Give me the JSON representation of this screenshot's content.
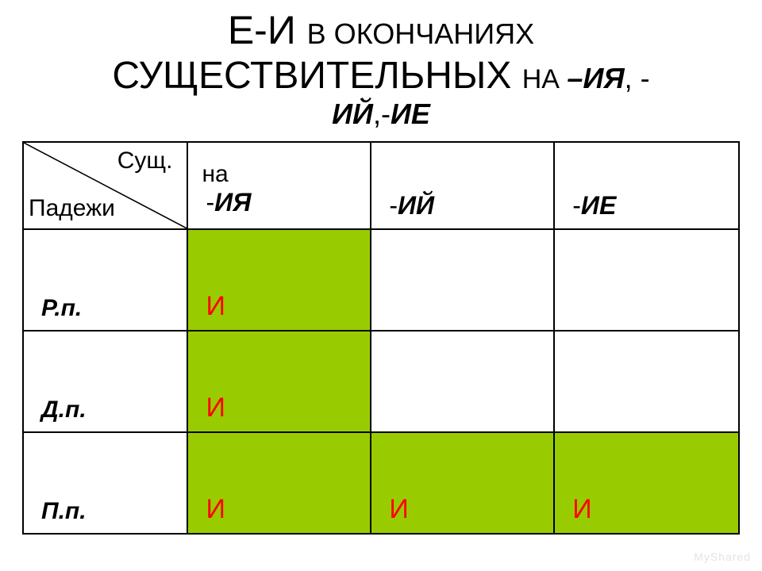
{
  "title": {
    "segments": [
      {
        "text": "Е-И ",
        "fontsize": 50,
        "weight": "normal",
        "italic": false
      },
      {
        "text": "В ОКОНЧАНИЯХ ",
        "fontsize": 36,
        "weight": "normal",
        "italic": false,
        "break_after": true
      },
      {
        "text": "СУЩЕСТВИТЕЛЬНЫХ ",
        "fontsize": 48,
        "weight": "normal",
        "italic": false
      },
      {
        "text": "НА ",
        "fontsize": 34,
        "weight": "normal",
        "italic": false
      },
      {
        "text": "–ИЯ",
        "fontsize": 36,
        "weight": "bold",
        "italic": true
      },
      {
        "text": ", -",
        "fontsize": 36,
        "weight": "normal",
        "italic": false,
        "break_after": true
      },
      {
        "text": "ИЙ",
        "fontsize": 36,
        "weight": "bold",
        "italic": true
      },
      {
        "text": ",-",
        "fontsize": 36,
        "weight": "normal",
        "italic": false
      },
      {
        "text": "ИЕ",
        "fontsize": 36,
        "weight": "bold",
        "italic": true
      }
    ]
  },
  "table": {
    "type": "table",
    "background_color": "#ffffff",
    "border_color": "#000000",
    "fill_color": "#99cc00",
    "text_color": "#000000",
    "value_color": "#ff0000",
    "col_widths_pct": [
      23,
      25.6,
      25.6,
      25.8
    ],
    "header_row_height": 110,
    "body_row_height": 128,
    "corner": {
      "top": "Сущ.",
      "bottom": "Падежи"
    },
    "columns": [
      {
        "prefix": "на",
        "dash": "-",
        "suffix": "ИЯ"
      },
      {
        "prefix": "",
        "dash": "-",
        "suffix": "ИЙ"
      },
      {
        "prefix": "",
        "dash": "-",
        "suffix": "ИЕ"
      }
    ],
    "rows": [
      {
        "label": "Р.п.",
        "cells": [
          {
            "v": "И",
            "fill": true
          },
          {
            "v": "",
            "fill": false
          },
          {
            "v": "",
            "fill": false
          }
        ]
      },
      {
        "label": "Д.п.",
        "cells": [
          {
            "v": "И",
            "fill": true
          },
          {
            "v": "",
            "fill": false
          },
          {
            "v": "",
            "fill": false
          }
        ]
      },
      {
        "label": "П.п.",
        "cells": [
          {
            "v": "И",
            "fill": true
          },
          {
            "v": "И",
            "fill": true
          },
          {
            "v": "И",
            "fill": true
          }
        ]
      }
    ]
  },
  "watermark": "MyShared"
}
